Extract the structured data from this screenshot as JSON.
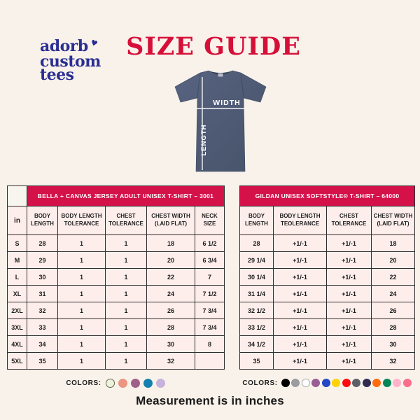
{
  "theme": {
    "background": "#f9f2ea",
    "banner_crimson": "#d41149",
    "title_red": "#d60f39",
    "logo_navy": "#2a2f92",
    "cell_pink": "#fdeeec",
    "shirt_heather_navy": "#4f5b74"
  },
  "logo": {
    "line1": "adorb",
    "apostrophe_heart": "♥",
    "line2": "custom",
    "line3": "tees"
  },
  "title": "SIZE GUIDE",
  "shirt": {
    "width_label": "WIDTH",
    "length_label": "LENGTH"
  },
  "left_table": {
    "banner": "BELLA + CANVAS JERSEY ADULT UNISEX T-SHIRT – 3001",
    "unit_header": "in",
    "columns": [
      "BODY LENGTH",
      "BODY LENGTH TOLERANCE",
      "CHEST TOLERANCE",
      "CHEST WIDTH (LAID FLAT)",
      "NECK SIZE"
    ],
    "rows": [
      {
        "size": "S",
        "values": [
          "28",
          "1",
          "1",
          "18",
          "6 1/2"
        ]
      },
      {
        "size": "M",
        "values": [
          "29",
          "1",
          "1",
          "20",
          "6 3/4"
        ]
      },
      {
        "size": "L",
        "values": [
          "30",
          "1",
          "1",
          "22",
          "7"
        ]
      },
      {
        "size": "XL",
        "values": [
          "31",
          "1",
          "1",
          "24",
          "7 1/2"
        ]
      },
      {
        "size": "2XL",
        "values": [
          "32",
          "1",
          "1",
          "26",
          "7 3/4"
        ]
      },
      {
        "size": "3XL",
        "values": [
          "33",
          "1",
          "1",
          "28",
          "7 3/4"
        ]
      },
      {
        "size": "4XL",
        "values": [
          "34",
          "1",
          "1",
          "30",
          "8"
        ]
      },
      {
        "size": "5XL",
        "values": [
          "35",
          "1",
          "1",
          "32",
          ""
        ]
      }
    ],
    "colors_label": "COLORS:",
    "swatches": [
      {
        "name": "pale-sage",
        "fill": "#eef1dd",
        "border": "#63684a"
      },
      {
        "name": "salmon",
        "fill": "#eb9681",
        "border": "#eb9681"
      },
      {
        "name": "mauve",
        "fill": "#a05f89",
        "border": "#a05f89"
      },
      {
        "name": "teal-blue",
        "fill": "#1480af",
        "border": "#1480af"
      },
      {
        "name": "lavender",
        "fill": "#c7b2dd",
        "border": "#c7b2dd"
      }
    ]
  },
  "right_table": {
    "banner": "GILDAN UNISEX SOFTSTYLE® T-SHIRT – 64000",
    "columns": [
      "BODY LENGTH",
      "BODY LENGTH TEOLERANCE",
      "CHEST TOLERANCE",
      "CHEST WIDTH (LAID FLAT)"
    ],
    "rows": [
      {
        "values": [
          "28",
          "+1/-1",
          "+1/-1",
          "18"
        ]
      },
      {
        "values": [
          "29 1/4",
          "+1/-1",
          "+1/-1",
          "20"
        ]
      },
      {
        "values": [
          "30 1/4",
          "+1/-1",
          "+1/-1",
          "22"
        ]
      },
      {
        "values": [
          "31 1/4",
          "+1/-1",
          "+1/-1",
          "24"
        ]
      },
      {
        "values": [
          "32 1/2",
          "+1/-1",
          "+1/-1",
          "26"
        ]
      },
      {
        "values": [
          "33 1/2",
          "+1/-1",
          "+1/-1",
          "28"
        ]
      },
      {
        "values": [
          "34 1/2",
          "+1/-1",
          "+1/-1",
          "30"
        ]
      },
      {
        "values": [
          "35",
          "+1/-1",
          "+1/-1",
          "32"
        ]
      }
    ],
    "colors_label": "COLORS:",
    "swatches": [
      {
        "name": "black",
        "fill": "#000000",
        "border": "#000000"
      },
      {
        "name": "gray",
        "fill": "#9b9c9e",
        "border": "#9b9c9e"
      },
      {
        "name": "white",
        "fill": "#ffffff",
        "border": "#b0b0b0"
      },
      {
        "name": "purple",
        "fill": "#985d95",
        "border": "#985d95"
      },
      {
        "name": "royal-blue",
        "fill": "#2448c4",
        "border": "#2448c4"
      },
      {
        "name": "gold",
        "fill": "#ffd303",
        "border": "#ffd303"
      },
      {
        "name": "red",
        "fill": "#fe0d0d",
        "border": "#fe0d0d"
      },
      {
        "name": "charcoal",
        "fill": "#5c6066",
        "border": "#5c6066"
      },
      {
        "name": "dark-indigo",
        "fill": "#312b50",
        "border": "#312b50"
      },
      {
        "name": "orange",
        "fill": "#ff6c0e",
        "border": "#ff6c0e"
      },
      {
        "name": "green",
        "fill": "#028659",
        "border": "#028659"
      },
      {
        "name": "light-pink",
        "fill": "#ffb3ca",
        "border": "#ffb3ca"
      },
      {
        "name": "rose",
        "fill": "#f96e8b",
        "border": "#f96e8b"
      }
    ]
  },
  "footer": "Measurement is in inches"
}
